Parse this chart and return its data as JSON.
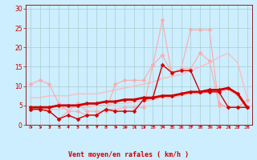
{
  "x": [
    0,
    1,
    2,
    3,
    4,
    5,
    6,
    7,
    8,
    9,
    10,
    11,
    12,
    13,
    14,
    15,
    16,
    17,
    18,
    19,
    20,
    21,
    22,
    23
  ],
  "background_color": "#cceeff",
  "grid_color": "#aacccc",
  "xlabel": "Vent moyen/en rafales ( km/h )",
  "xlabel_color": "#cc0000",
  "yticks": [
    0,
    5,
    10,
    15,
    20,
    25,
    30
  ],
  "ylim": [
    0,
    31
  ],
  "xlim": [
    -0.5,
    23.5
  ],
  "line_upper_light": {
    "y": [
      10.5,
      11.5,
      10.5,
      5.5,
      3.5,
      5.5,
      3.5,
      3.5,
      3.5,
      10.5,
      11.5,
      11.5,
      11.5,
      15.5,
      18.0,
      13.5,
      14.5,
      14.5,
      18.5,
      16.5,
      5.5,
      4.5,
      4.5,
      6.5
    ],
    "color": "#ffaaaa",
    "linewidth": 0.8,
    "marker": "D",
    "markersize": 2.5
  },
  "line_peak_light": {
    "y": [
      4.0,
      4.0,
      3.5,
      1.5,
      3.5,
      3.5,
      2.5,
      2.5,
      4.0,
      4.0,
      4.5,
      4.5,
      4.5,
      15.5,
      27.0,
      13.0,
      14.5,
      24.5,
      24.5,
      24.5,
      5.0,
      4.5,
      4.5,
      6.5
    ],
    "color": "#ffaaaa",
    "linewidth": 0.8,
    "marker": "D",
    "markersize": 2.5
  },
  "line_dark_mid": {
    "y": [
      4.0,
      4.0,
      3.5,
      1.5,
      2.5,
      1.5,
      2.5,
      2.5,
      4.0,
      3.5,
      3.5,
      3.5,
      6.5,
      7.0,
      15.5,
      13.5,
      14.0,
      14.0,
      8.5,
      8.5,
      8.5,
      4.5,
      4.5,
      4.5
    ],
    "color": "#cc0000",
    "linewidth": 1.0,
    "marker": "D",
    "markersize": 2.5
  },
  "line_upper_envelope": {
    "y": [
      7.0,
      7.0,
      7.5,
      7.5,
      7.5,
      8.0,
      8.0,
      8.0,
      8.5,
      9.0,
      9.5,
      10.0,
      10.5,
      11.0,
      12.0,
      12.5,
      13.0,
      14.0,
      15.0,
      16.0,
      17.5,
      18.5,
      16.0,
      7.0
    ],
    "color": "#ffbbbb",
    "linewidth": 1.0,
    "marker": null
  },
  "line_lower_envelope": {
    "y": [
      4.0,
      4.0,
      4.0,
      4.0,
      4.5,
      4.5,
      4.5,
      5.0,
      5.0,
      5.5,
      5.5,
      6.0,
      6.0,
      6.5,
      7.0,
      7.0,
      7.5,
      8.0,
      8.0,
      8.5,
      8.5,
      9.0,
      7.5,
      4.0
    ],
    "color": "#ffbbbb",
    "linewidth": 1.0,
    "marker": null
  },
  "line_mean": {
    "y": [
      4.5,
      4.5,
      4.5,
      5.0,
      5.0,
      5.0,
      5.5,
      5.5,
      6.0,
      6.0,
      6.5,
      6.5,
      7.0,
      7.0,
      7.5,
      7.5,
      8.0,
      8.5,
      8.5,
      9.0,
      9.0,
      9.5,
      8.0,
      4.5
    ],
    "color": "#cc0000",
    "linewidth": 2.0,
    "marker": "D",
    "markersize": 2.5
  },
  "wind_dirs": [
    225,
    225,
    247,
    270,
    270,
    247,
    270,
    270,
    270,
    225,
    225,
    225,
    225,
    270,
    270,
    270,
    270,
    270,
    270,
    270,
    225,
    225,
    270,
    247
  ],
  "arrow_color": "#cc0000",
  "tick_color": "#cc0000",
  "axis_color": "#880000"
}
